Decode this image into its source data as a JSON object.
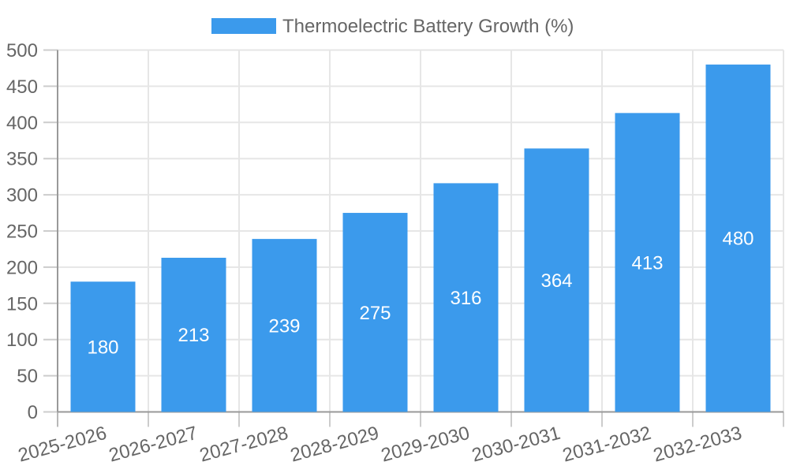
{
  "chart_data": {
    "type": "bar",
    "title": "Thermoelectric Battery Growth (%)",
    "categories": [
      "2025-2026",
      "2026-2027",
      "2027-2028",
      "2028-2029",
      "2029-2030",
      "2030-2031",
      "2031-2032",
      "2032-2033"
    ],
    "series": [
      {
        "name": "Thermoelectric Battery Growth (%)",
        "values": [
          180,
          213,
          239,
          275,
          316,
          364,
          413,
          480
        ]
      }
    ],
    "xlabel": "",
    "ylabel": "",
    "ylim": [
      0,
      500
    ],
    "ytick_step": 50,
    "ytick_labels": [
      "0",
      "50",
      "100",
      "150",
      "200",
      "250",
      "300",
      "350",
      "400",
      "450",
      "500"
    ],
    "grid": true,
    "legend_position": "top-center",
    "bar_color": "#3b9aec",
    "value_label_color": "#ffffff",
    "axis_text_color": "#666666",
    "grid_color": "#e6e6e6",
    "tick_color": "#cccccc",
    "axis_line_color": "#999999",
    "background_color": "#ffffff"
  },
  "legend": {
    "label": "Thermoelectric Battery Growth (%)"
  }
}
